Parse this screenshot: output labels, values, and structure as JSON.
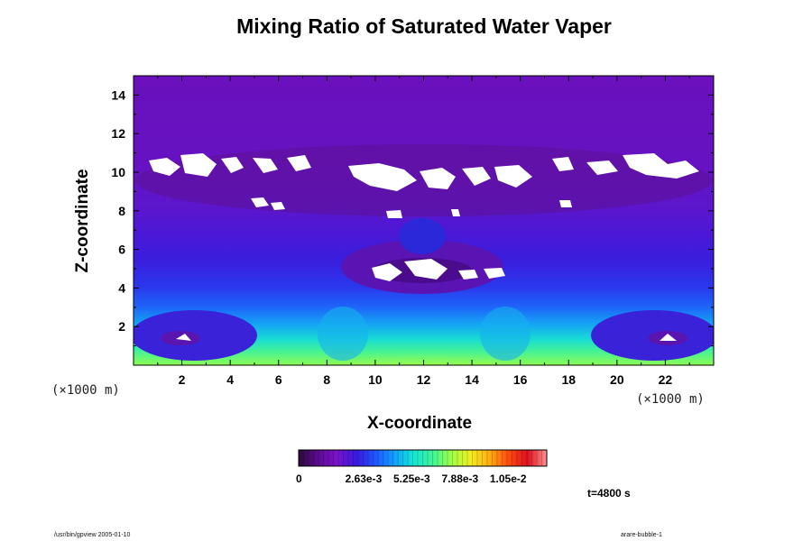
{
  "title": "Mixing Ratio of Saturated Water Vaper",
  "chart_data": {
    "type": "heatmap",
    "title": "Mixing Ratio of Saturated Water Vaper",
    "xlabel": "X-coordinate",
    "ylabel": "Z-coordinate",
    "x_unit": "(×1000 m)",
    "y_unit": "(×1000 m)",
    "xlim": [
      0,
      24
    ],
    "ylim": [
      0,
      15
    ],
    "x_ticks": [
      "2",
      "4",
      "6",
      "8",
      "10",
      "12",
      "14",
      "16",
      "18",
      "20",
      "22"
    ],
    "y_ticks": [
      "2",
      "4",
      "6",
      "8",
      "10",
      "12",
      "14"
    ],
    "colorbar": {
      "range": [
        0,
        0.0135
      ],
      "tick_labels": [
        "0",
        "2.63e-3",
        "5.25e-3",
        "7.88e-3",
        "1.05e-2"
      ],
      "colors": [
        "#2a0a3a",
        "#5b0b8f",
        "#7a14c8",
        "#3a18e0",
        "#1f55ff",
        "#0fa0ff",
        "#14e6d6",
        "#3cf59a",
        "#9cff45",
        "#f2ee22",
        "#ffae10",
        "#ff4a10",
        "#dd1020",
        "#ff9090"
      ]
    },
    "time_label": "t=4800 s"
  },
  "footer": {
    "left": "/usr/bin/gpview 2005-01-10",
    "right": "arare-bubble-1"
  }
}
